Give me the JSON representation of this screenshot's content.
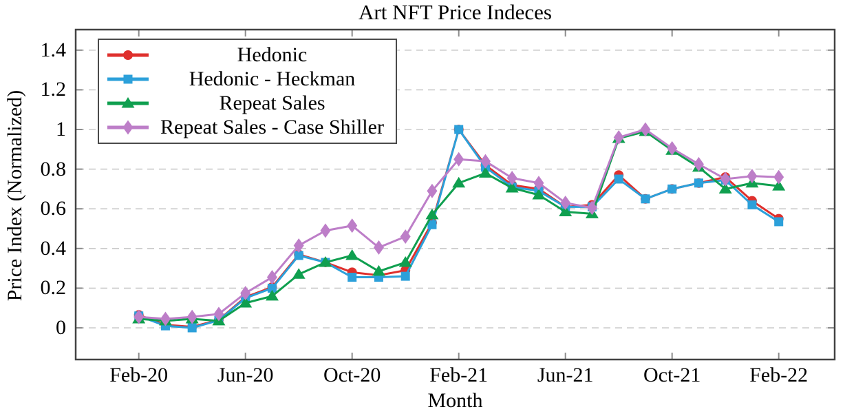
{
  "figure": {
    "title": "Art NFT Price Indeces",
    "x_axis_label": "Month",
    "y_axis_label": "Price Index (Normalized)"
  },
  "colors": {
    "hedonic": "#df302d",
    "hedonic_heckman": "#2ca0da",
    "repeat_sales": "#0f9f4f",
    "repeat_sales_case_shiller": "#bd7ec8",
    "gridline": "#cbcbcb",
    "plot_border": "#434343",
    "tick": "#8c8c8c"
  },
  "chart_data": {
    "type": "line",
    "title": "Art NFT Price Indeces",
    "xlabel": "Month",
    "ylabel": "Price Index (Normalized)",
    "grid": "horizontal-dashed",
    "legend_position": "top-left",
    "ylim": [
      -0.16,
      1.49
    ],
    "categories": [
      "Feb-20",
      "Mar-20",
      "Apr-20",
      "May-20",
      "Jun-20",
      "Jul-20",
      "Aug-20",
      "Sep-20",
      "Oct-20",
      "Nov-20",
      "Dec-20",
      "Jan-21",
      "Feb-21",
      "Mar-21",
      "Apr-21",
      "May-21",
      "Jun-21",
      "Jul-21",
      "Aug-21",
      "Sep-21",
      "Oct-21",
      "Nov-21",
      "Dec-21",
      "Jan-22",
      "Feb-22"
    ],
    "x_tick_labels": [
      "Feb-20",
      "Jun-20",
      "Oct-20",
      "Feb-21",
      "Jun-21",
      "Oct-21",
      "Feb-22"
    ],
    "x_tick_indices": [
      0,
      4,
      8,
      12,
      16,
      20,
      24
    ],
    "y_ticks": [
      0,
      0.2,
      0.4,
      0.6,
      0.8,
      1,
      1.2,
      1.4
    ],
    "y_tick_labels": [
      "0",
      "0.2",
      "0.4",
      "0.6",
      "0.8",
      "1",
      "1.2",
      "1.4"
    ],
    "series": [
      {
        "name": "Hedonic",
        "color": "#df302d",
        "marker": "circle",
        "values": [
          0.065,
          0.015,
          0.005,
          0.04,
          0.155,
          0.205,
          0.37,
          0.33,
          0.28,
          0.265,
          0.29,
          0.53,
          1.0,
          0.82,
          0.72,
          0.7,
          0.61,
          0.62,
          0.77,
          0.65,
          0.7,
          0.73,
          0.76,
          0.64,
          0.55
        ]
      },
      {
        "name": "Hedonic - Heckman",
        "color": "#2ca0da",
        "marker": "square",
        "values": [
          0.06,
          0.01,
          0.0,
          0.038,
          0.15,
          0.2,
          0.365,
          0.33,
          0.255,
          0.255,
          0.26,
          0.52,
          1.0,
          0.81,
          0.71,
          0.69,
          0.61,
          0.61,
          0.75,
          0.65,
          0.7,
          0.73,
          0.745,
          0.62,
          0.535
        ]
      },
      {
        "name": "Repeat Sales",
        "color": "#0f9f4f",
        "marker": "triangle",
        "values": [
          0.045,
          0.035,
          0.045,
          0.035,
          0.125,
          0.16,
          0.27,
          0.33,
          0.365,
          0.285,
          0.33,
          0.57,
          0.73,
          0.78,
          0.705,
          0.67,
          0.585,
          0.575,
          0.955,
          0.99,
          0.895,
          0.81,
          0.7,
          0.73,
          0.715
        ]
      },
      {
        "name": "Repeat Sales - Case Shiller",
        "color": "#bd7ec8",
        "marker": "diamond",
        "values": [
          0.055,
          0.045,
          0.055,
          0.07,
          0.175,
          0.255,
          0.415,
          0.49,
          0.515,
          0.405,
          0.46,
          0.69,
          0.85,
          0.84,
          0.755,
          0.73,
          0.63,
          0.605,
          0.96,
          1.0,
          0.905,
          0.825,
          0.75,
          0.765,
          0.76
        ]
      }
    ]
  }
}
